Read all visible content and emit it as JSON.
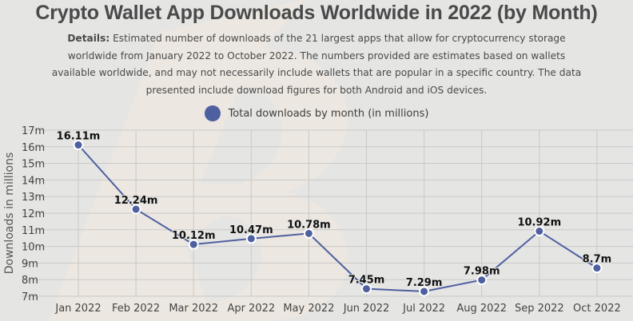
{
  "title": "Crypto Wallet App Downloads Worldwide in 2022 (by Month)",
  "details_label": "Details:",
  "details_text": "Estimated number of downloads of the 21 largest apps that allow for cryptocurrency storage worldwide from January 2022 to October 2022. The numbers provided are estimates based on wallets available worldwide, and may not necessarily include wallets that are popular in a specific country. The data presented include download figures for both Android and iOS devices.",
  "colors": {
    "series": "#4f60a0",
    "grid": "#c9c9c9",
    "background": "#e5e5e4"
  },
  "chart_data": {
    "type": "line",
    "title": "Crypto Wallet App Downloads Worldwide in 2022 (by Month)",
    "xlabel": "",
    "ylabel": "Downloads in millions",
    "ylim": [
      7,
      17
    ],
    "yticks": [
      "7m",
      "8m",
      "9m",
      "10m",
      "11m",
      "12m",
      "13m",
      "14m",
      "15m",
      "16m",
      "17m"
    ],
    "grid": true,
    "legend": "top-center",
    "categories": [
      "Jan 2022",
      "Feb 2022",
      "Mar 2022",
      "Apr 2022",
      "May 2022",
      "Jun 2022",
      "Jul 2022",
      "Aug 2022",
      "Sep 2022",
      "Oct 2022"
    ],
    "series": [
      {
        "name": "Total downloads by month (in millions)",
        "values": [
          16.11,
          12.24,
          10.12,
          10.47,
          10.78,
          7.45,
          7.29,
          7.98,
          10.92,
          8.7
        ],
        "labels": [
          "16.11m",
          "12.24m",
          "10.12m",
          "10.47m",
          "10.78m",
          "7.45m",
          "7.29m",
          "7.98m",
          "10.92m",
          "8.7m"
        ]
      }
    ]
  }
}
